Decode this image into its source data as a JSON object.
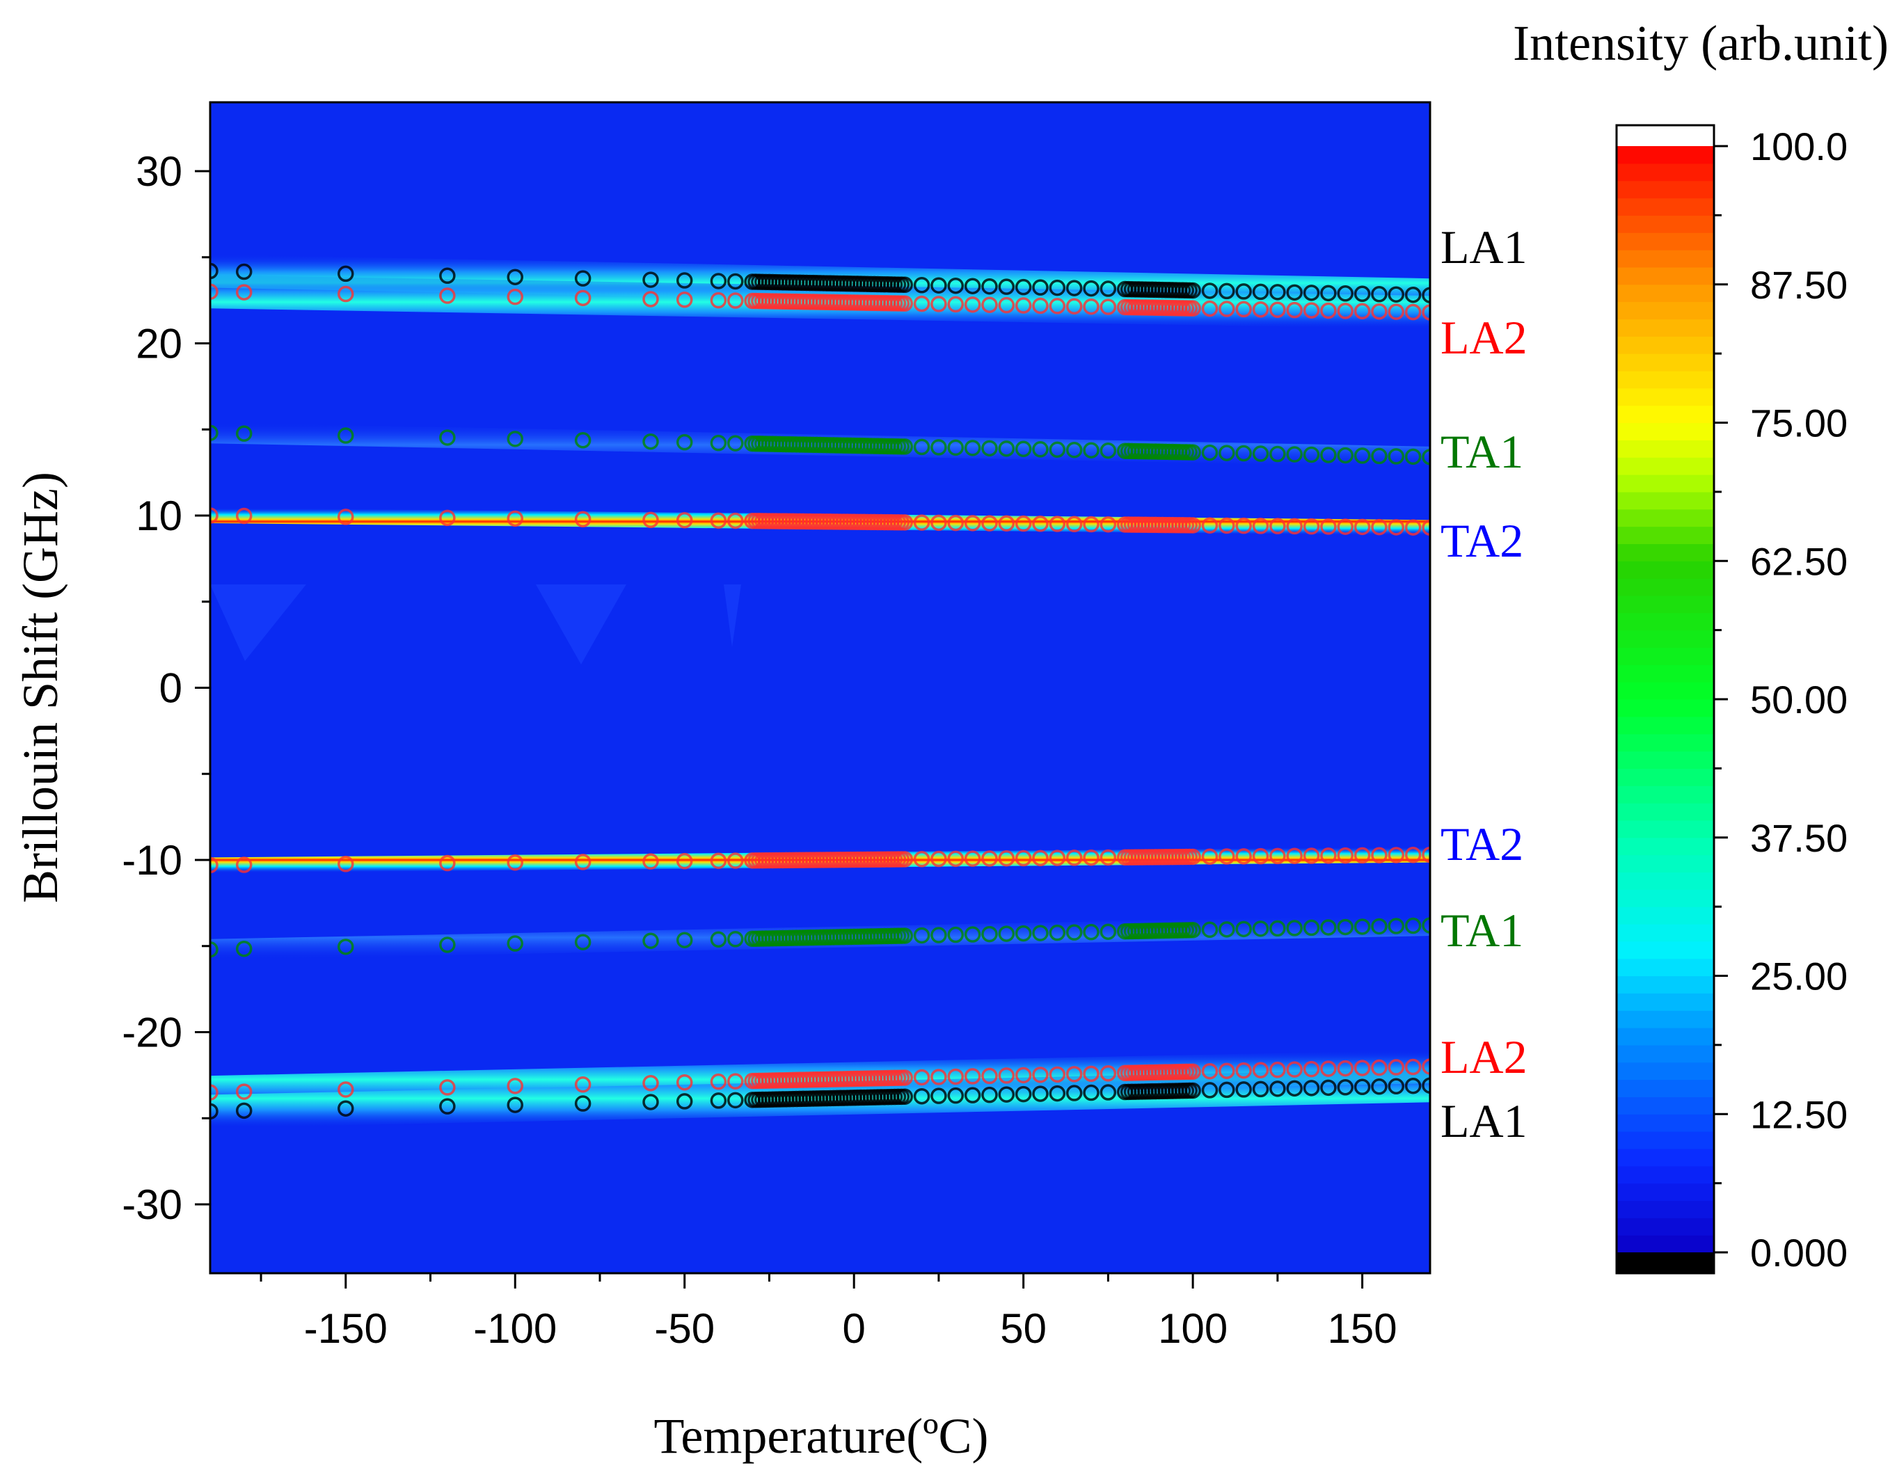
{
  "chart_data": {
    "type": "heatmap",
    "title": "",
    "xlabel": "Temperature(ºC)",
    "ylabel": "Brillouin Shift (GHz)",
    "xlim": [
      -190,
      170
    ],
    "ylim": [
      -34,
      34
    ],
    "x_ticks": [
      -150,
      -100,
      -50,
      0,
      50,
      100,
      150
    ],
    "x_tick_labels": [
      "-150",
      "-100",
      "-50",
      "0",
      "50",
      "100",
      "150"
    ],
    "y_ticks": [
      30,
      20,
      10,
      0,
      -10,
      -20,
      -30
    ],
    "y_tick_labels": [
      "30",
      "20",
      "10",
      "0",
      "-10",
      "-20",
      "-30"
    ],
    "background_color": "#0a2af2",
    "colorbar": {
      "title": "Intensity (arb.unit)",
      "min": 0,
      "max": 100,
      "tick_values": [
        100,
        87.5,
        75,
        62.5,
        50,
        37.5,
        25,
        12.5,
        0
      ],
      "tick_labels": [
        "100.0",
        "87.50",
        "75.00",
        "62.50",
        "50.00",
        "37.50",
        "25.00",
        "12.50",
        "0.000"
      ],
      "over_color": "#ffffff",
      "under_color": "#000000"
    },
    "temperatures_sparse": [
      -190,
      -180,
      -150,
      -120,
      -100,
      -80,
      -60,
      -50,
      -40,
      -35
    ],
    "temperatures_dense": {
      "start": -30,
      "end": 15,
      "step": 1
    },
    "temperatures_mid": {
      "start": 15,
      "end": 80,
      "step": 5
    },
    "temperatures_dense2": {
      "start": 80,
      "end": 100,
      "step": 1
    },
    "temperatures_high": {
      "start": 100,
      "end": 170,
      "step": 5
    },
    "series": [
      {
        "name": "LA1",
        "label_color": "#000000",
        "marker_color": "#000000",
        "band_color": "cyan",
        "sign": 1,
        "shift_at_minus190": 24.2,
        "shift_at_170": 22.8
      },
      {
        "name": "LA2",
        "label_color": "#ff0000",
        "marker_color": "#ff3030",
        "band_color": "cyan",
        "sign": 1,
        "shift_at_minus190": 23.0,
        "shift_at_170": 21.8
      },
      {
        "name": "TA1",
        "label_color": "#007700",
        "marker_color": "#008800",
        "band_color": "blue",
        "sign": 1,
        "shift_at_minus190": 14.8,
        "shift_at_170": 13.4
      },
      {
        "name": "TA2",
        "label_color": "#0000ff",
        "marker_color": "#ff3030",
        "band_color": "red",
        "sign": 1,
        "shift_at_minus190": 10.0,
        "shift_at_170": 9.3
      },
      {
        "name": "TA2",
        "label_color": "#0000ff",
        "marker_color": "#ff3030",
        "band_color": "red",
        "sign": -1,
        "shift_at_minus190": 10.3,
        "shift_at_170": 9.7
      },
      {
        "name": "TA1",
        "label_color": "#007700",
        "marker_color": "#008800",
        "band_color": "blue",
        "sign": -1,
        "shift_at_minus190": 15.2,
        "shift_at_170": 13.8
      },
      {
        "name": "LA2",
        "label_color": "#ff0000",
        "marker_color": "#ff3030",
        "band_color": "cyan",
        "sign": -1,
        "shift_at_minus190": 23.5,
        "shift_at_170": 22.0
      },
      {
        "name": "LA1",
        "label_color": "#000000",
        "marker_color": "#000000",
        "band_color": "cyan",
        "sign": -1,
        "shift_at_minus190": 24.6,
        "shift_at_170": 23.1
      }
    ]
  }
}
